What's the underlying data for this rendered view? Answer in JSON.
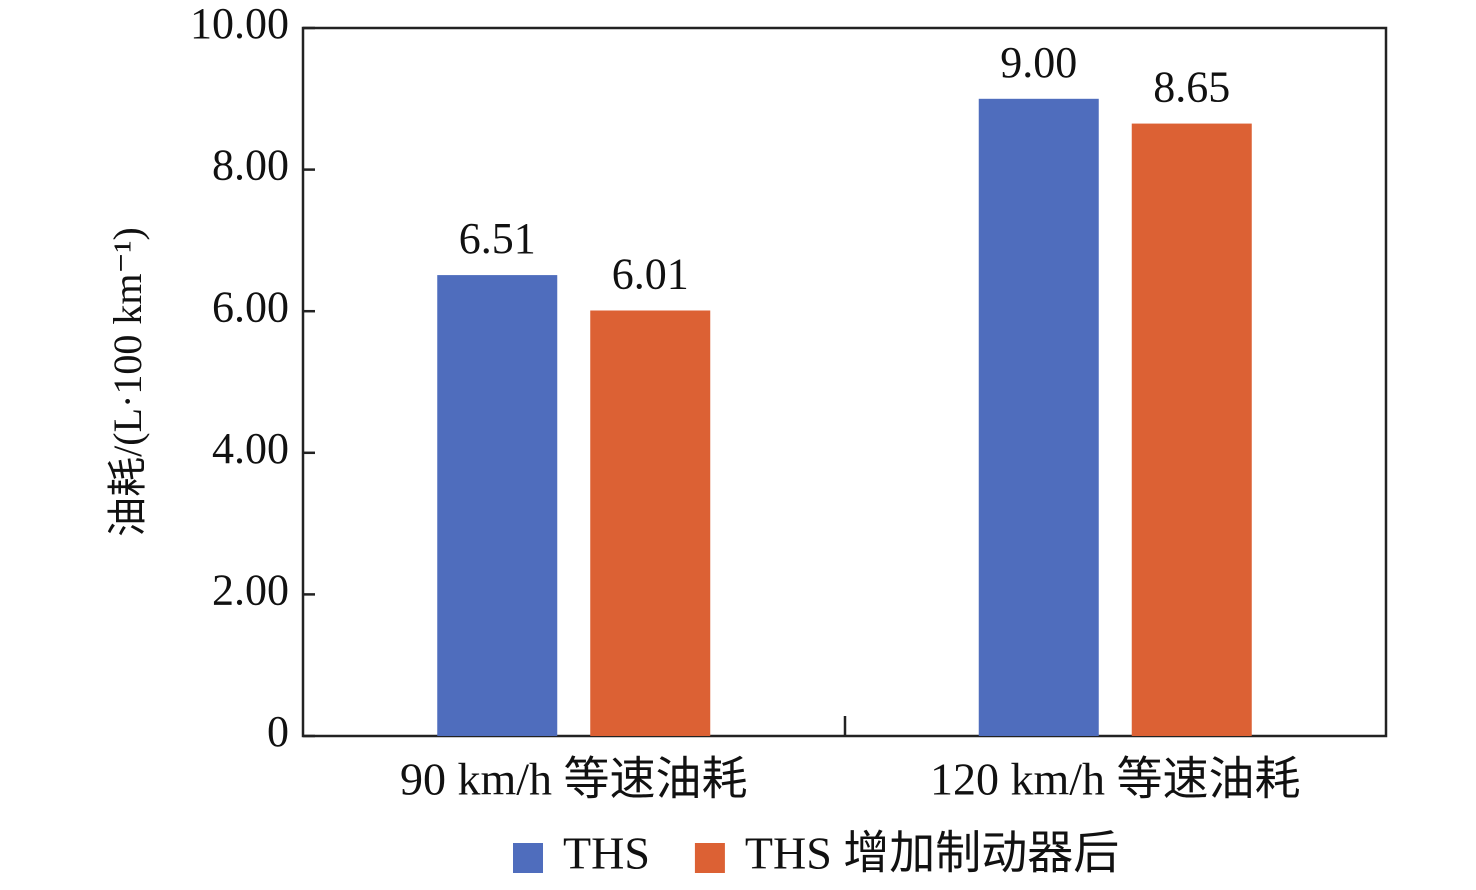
{
  "chart_data": {
    "type": "bar",
    "y_label": "油耗/(L·100 km⁻¹)",
    "categories": [
      "90 km/h 等速油耗",
      "120 km/h 等速油耗"
    ],
    "series": [
      {
        "name": "THS",
        "color": "#4f6dbd",
        "values": [
          6.51,
          9.0
        ],
        "value_labels": [
          "6.51",
          "9.00"
        ]
      },
      {
        "name": "THS 增加制动器后",
        "color": "#dc6134",
        "values": [
          6.01,
          8.65
        ],
        "value_labels": [
          "6.01",
          "8.65"
        ]
      }
    ],
    "ylim": [
      0,
      10
    ],
    "yticks": [
      0,
      {
        "value": 2,
        "label": "2.00"
      },
      {
        "value": 4,
        "label": "4.00"
      },
      {
        "value": 6,
        "label": "6.00"
      },
      {
        "value": 8,
        "label": "8.00"
      },
      {
        "value": 10,
        "label": "10.00"
      }
    ],
    "grid": false,
    "legend": "bottom"
  }
}
